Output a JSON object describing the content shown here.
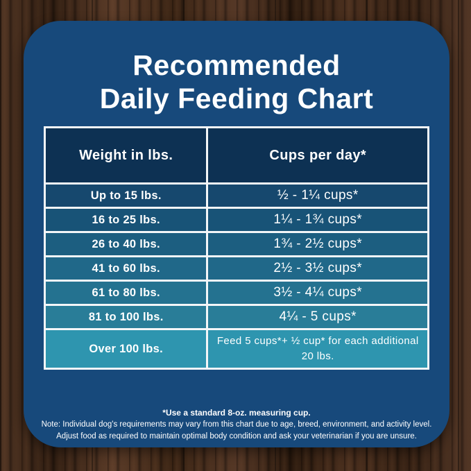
{
  "title": {
    "line1": "Recommended",
    "line2": "Daily Feeding Chart"
  },
  "table": {
    "headers": {
      "weight": "Weight in lbs.",
      "cups": "Cups per day*"
    },
    "rows": [
      {
        "weight": "Up to 15 lbs.",
        "cups": "½ - 1¼ cups*"
      },
      {
        "weight": "16 to 25 lbs.",
        "cups": "1¼ - 1¾ cups*"
      },
      {
        "weight": "26 to 40 lbs.",
        "cups": "1¾ - 2½ cups*"
      },
      {
        "weight": "41 to 60 lbs.",
        "cups": "2½ - 3½ cups*"
      },
      {
        "weight": "61 to 80 lbs.",
        "cups": "3½ - 4¼ cups*"
      },
      {
        "weight": "81 to 100 lbs.",
        "cups": "4¼ - 5 cups*"
      },
      {
        "weight": "Over 100 lbs.",
        "cups": "Feed 5 cups*+ ½ cup* for each additional 20 lbs."
      }
    ]
  },
  "footnotes": {
    "line1": "*Use a standard 8-oz. measuring cup.",
    "line2": "Note: Individual dog's requirements may vary from this chart due to age, breed, environment, and activity level.",
    "line3": "Adjust food as required to maintain optimal body condition and ask your veterinarian if you are unsure."
  },
  "colors": {
    "card_background": "#17497B",
    "header_background": "#0D3153",
    "row_backgrounds": [
      "#16486E",
      "#185377",
      "#1C5E80",
      "#206889",
      "#247290",
      "#297D98",
      "#2E95AF"
    ],
    "table_border": "#F3F6F8",
    "text": "#FFFFFF"
  },
  "chart_data": {
    "type": "table",
    "title": "Recommended Daily Feeding Chart",
    "columns": [
      "Weight in lbs.",
      "Cups per day*"
    ],
    "rows": [
      [
        "Up to 15 lbs.",
        "½ - 1¼ cups*"
      ],
      [
        "16 to 25 lbs.",
        "1¼ - 1¾ cups*"
      ],
      [
        "26 to 40 lbs.",
        "1¾ - 2½ cups*"
      ],
      [
        "41 to 60 lbs.",
        "2½ - 3½ cups*"
      ],
      [
        "61 to 80 lbs.",
        "3½ - 4¼ cups*"
      ],
      [
        "81 to 100 lbs.",
        "4¼ - 5 cups*"
      ],
      [
        "Over 100 lbs.",
        "Feed 5 cups*+ ½ cup* for each additional 20 lbs."
      ]
    ],
    "notes": [
      "*Use a standard 8-oz. measuring cup.",
      "Note: Individual dog's requirements may vary from this chart due to age, breed, environment, and activity level.",
      "Adjust food as required to maintain optimal body condition and ask your veterinarian if you are unsure."
    ]
  }
}
